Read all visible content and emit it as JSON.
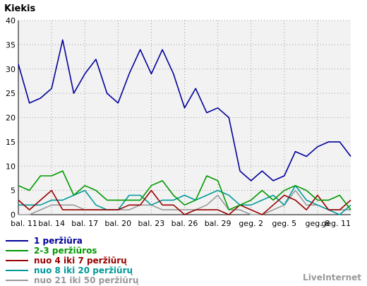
{
  "chart_data": {
    "type": "line",
    "title": "Kiekis",
    "xlabel": "",
    "ylabel": "",
    "ylim": [
      0,
      40
    ],
    "yticks": [
      0,
      5,
      10,
      15,
      20,
      25,
      30,
      35,
      40
    ],
    "grid": true,
    "legend_position": "bottom-left",
    "x_tick_labels": [
      "bal. 11",
      "bal. 14",
      "bal. 17",
      "bal. 20",
      "bal. 23",
      "bal. 26",
      "bal. 29",
      "geg. 2",
      "geg. 5",
      "geg. 8",
      "geg. 11"
    ],
    "x": [
      "bal. 11",
      "bal. 12",
      "bal. 13",
      "bal. 14",
      "bal. 15",
      "bal. 16",
      "bal. 17",
      "bal. 18",
      "bal. 19",
      "bal. 20",
      "bal. 21",
      "bal. 22",
      "bal. 23",
      "bal. 24",
      "bal. 25",
      "bal. 26",
      "bal. 27",
      "bal. 28",
      "bal. 29",
      "bal. 30",
      "geg. 1",
      "geg. 2",
      "geg. 3",
      "geg. 4",
      "geg. 5",
      "geg. 6",
      "geg. 7",
      "geg. 8",
      "geg. 9",
      "geg. 10",
      "geg. 11"
    ],
    "series": [
      {
        "name": "1 peržiūra",
        "color": "#000099",
        "values": [
          31,
          23,
          24,
          26,
          36,
          25,
          29,
          32,
          25,
          23,
          29,
          34,
          29,
          34,
          29,
          22,
          26,
          21,
          22,
          20,
          9,
          7,
          9,
          7,
          8,
          13,
          12,
          14,
          15,
          15,
          12
        ]
      },
      {
        "name": "2-3 peržiūros",
        "color": "#009900",
        "values": [
          6,
          5,
          8,
          8,
          9,
          4,
          6,
          5,
          3,
          3,
          3,
          3,
          6,
          7,
          4,
          2,
          3,
          8,
          7,
          1,
          2,
          3,
          5,
          3,
          5,
          6,
          5,
          3,
          3,
          4,
          1
        ]
      },
      {
        "name": "nuo 4 iki 7 peržiūrų",
        "color": "#990000",
        "values": [
          3,
          1,
          3,
          5,
          1,
          1,
          1,
          1,
          1,
          1,
          2,
          2,
          5,
          2,
          2,
          0,
          1,
          1,
          1,
          0,
          2,
          1,
          0,
          2,
          4,
          3,
          1,
          4,
          1,
          1,
          3
        ]
      },
      {
        "name": "nuo 8 iki 20 peržiūrų",
        "color": "#009999",
        "values": [
          2,
          2,
          2,
          3,
          3,
          4,
          5,
          2,
          1,
          1,
          4,
          4,
          2,
          3,
          3,
          4,
          3,
          4,
          5,
          4,
          2,
          2,
          3,
          4,
          2,
          6,
          3,
          2,
          1,
          0,
          2
        ]
      },
      {
        "name": "nuo 21 iki 50 peržiūrų",
        "color": "#999999",
        "values": [
          0,
          0,
          1,
          2,
          2,
          2,
          1,
          1,
          1,
          1,
          1,
          2,
          2,
          1,
          1,
          1,
          1,
          2,
          4,
          1,
          1,
          0,
          0,
          1,
          2,
          5,
          2,
          2,
          1,
          1,
          1
        ]
      }
    ]
  },
  "brand": "LiveInternet"
}
